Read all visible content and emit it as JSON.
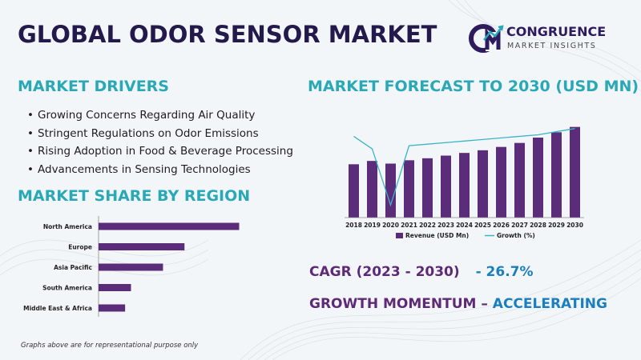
{
  "header": {
    "title": "GLOBAL ODOR SENSOR MARKET",
    "logo_name": "CONGRUENCE",
    "logo_sub": "MARKET INSIGHTS"
  },
  "drivers": {
    "heading": "MARKET DRIVERS",
    "items": [
      "Growing Concerns Regarding Air Quality",
      "Stringent Regulations on Odor Emissions",
      "Rising Adoption in Food & Beverage Processing",
      "Advancements in Sensing Technologies"
    ]
  },
  "share": {
    "heading": "MARKET SHARE BY REGION"
  },
  "forecast": {
    "heading": "MARKET FORECAST TO 2030 (USD MN)"
  },
  "kpis": {
    "cagr_label": "CAGR (2023 - 2030)",
    "cagr_value": "- 26.7%",
    "growth_label": "GROWTH MOMENTUM – ",
    "growth_value": "ACCELERATING"
  },
  "footnote": "Graphs above are for representational purpose only",
  "colors": {
    "title": "#23194a",
    "section": "#29a8b8",
    "bar": "#5b2c7a",
    "growth_line": "#3bb4c8",
    "accent": "#1a7fc1"
  },
  "chart_data": [
    {
      "type": "bar",
      "orientation": "horizontal",
      "categories": [
        "North America",
        "Europe",
        "Asia Pacific",
        "South America",
        "Middle East & Africa"
      ],
      "values": [
        36,
        22,
        16.5,
        8.3,
        6.8
      ],
      "xlim": [
        0,
        40
      ],
      "grid": false
    },
    {
      "type": "bar",
      "categories": [
        "2018",
        "2019",
        "2020",
        "2021",
        "2022",
        "2023",
        "2024",
        "2025",
        "2026",
        "2027",
        "2028",
        "2029",
        "2030"
      ],
      "series": [
        {
          "name": "Revenue (USD Mn)",
          "type": "bar",
          "values": [
            80,
            85,
            81,
            86,
            89,
            93,
            97,
            101,
            106,
            112,
            120,
            128,
            136
          ]
        },
        {
          "name": "Growth (%)",
          "type": "line",
          "values": [
            12,
            8,
            -10,
            9,
            9.5,
            10,
            10.5,
            11,
            11.5,
            12,
            12.5,
            13.5,
            14.5
          ]
        }
      ],
      "ylim": [
        0,
        150
      ],
      "growth_ylim": [
        -14,
        18
      ],
      "legend": "bottom",
      "grid": false
    }
  ]
}
